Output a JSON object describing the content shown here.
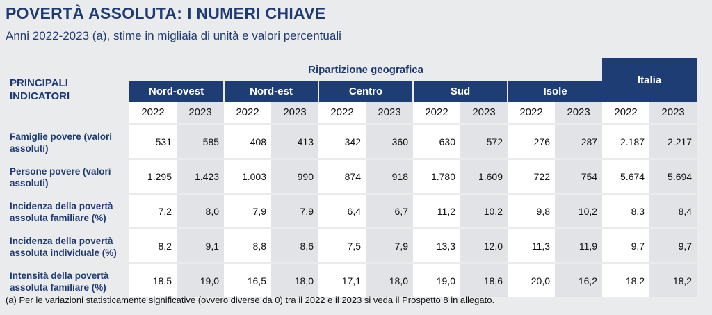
{
  "title": "POVERTÀ ASSOLUTA: I NUMERI CHIAVE",
  "subtitle": "Anni 2022-2023 (a), stime in migliaia di unità e valori percentuali",
  "table": {
    "indicator_header": "PRINCIPALI INDICATORI",
    "group_header": "Ripartizione geografica",
    "italia_header": "Italia",
    "regions": [
      "Nord-ovest",
      "Nord-est",
      "Centro",
      "Sud",
      "Isole"
    ],
    "years": [
      "2022",
      "2023"
    ],
    "rows": [
      {
        "label": "Famiglie povere (valori assoluti)",
        "values": [
          "531",
          "585",
          "408",
          "413",
          "342",
          "360",
          "630",
          "572",
          "276",
          "287",
          "2.187",
          "2.217"
        ]
      },
      {
        "label": "Persone povere (valori assoluti)",
        "values": [
          "1.295",
          "1.423",
          "1.003",
          "990",
          "874",
          "918",
          "1.780",
          "1.609",
          "722",
          "754",
          "5.674",
          "5.694"
        ]
      },
      {
        "label": "Incidenza della povertà assoluta familiare (%)",
        "values": [
          "7,2",
          "8,0",
          "7,9",
          "7,9",
          "6,4",
          "6,7",
          "11,2",
          "10,2",
          "9,8",
          "10,2",
          "8,3",
          "8,4"
        ]
      },
      {
        "label": "Incidenza della povertà assoluta individuale (%)",
        "values": [
          "8,2",
          "9,1",
          "8,8",
          "8,6",
          "7,5",
          "7,9",
          "13,3",
          "12,0",
          "11,3",
          "11,9",
          "9,7",
          "9,7"
        ]
      },
      {
        "label": "Intensità della povertà assoluta familiare (%)",
        "values": [
          "18,5",
          "19,0",
          "16,5",
          "18,0",
          "17,1",
          "18,0",
          "19,0",
          "18,6",
          "20,0",
          "16,2",
          "18,2",
          "18,2"
        ]
      }
    ]
  },
  "note": "(a)   Per le variazioni statisticamente significative (ovvero diverse da 0) tra il 2022 e il 2023 si veda il Prospetto 8 in allegato."
}
